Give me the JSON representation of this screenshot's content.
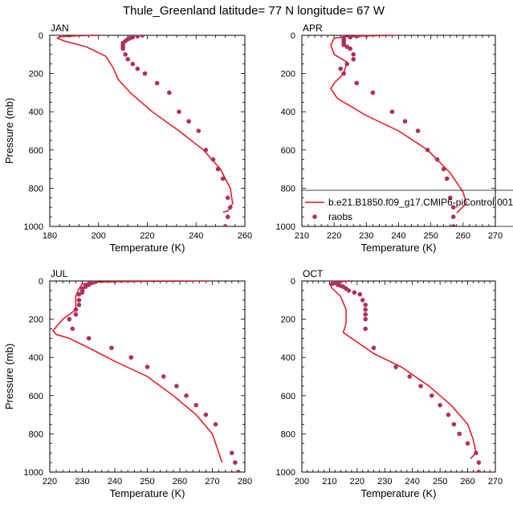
{
  "title": "Thule_Greenland  latitude= 77 N longitude= 67 W",
  "colors": {
    "model_line": "#e8131b",
    "raobs_marker": "#b03060",
    "axis": "#000000"
  },
  "legend": {
    "model_label": "b.e21.B1850.f09_g17.CMIP6-piControl.001",
    "obs_label": "raobs"
  },
  "chart_data": [
    {
      "type": "line",
      "panel": "JAN",
      "xlabel": "Temperature (K)",
      "ylabel": "Pressure (mb)",
      "xlim": [
        180,
        260
      ],
      "ylim": [
        1000,
        0
      ],
      "xticks": [
        180,
        200,
        220,
        240,
        260
      ],
      "yticks": [
        0,
        200,
        400,
        600,
        800,
        1000
      ],
      "series": [
        {
          "name": "b.e21.B1850.f09_g17.CMIP6-piControl.001",
          "style": "line",
          "x": [
            201,
            192,
            184,
            183,
            186,
            195,
            203,
            206,
            208,
            213,
            222,
            233,
            243,
            250,
            254,
            255,
            253,
            251
          ],
          "y": [
            0,
            2,
            8,
            15,
            30,
            60,
            110,
            170,
            230,
            300,
            400,
            500,
            600,
            700,
            800,
            880,
            920,
            925
          ]
        },
        {
          "name": "raobs",
          "style": "markers",
          "x": [
            218,
            216,
            214,
            213,
            212,
            211,
            210,
            210,
            210,
            210,
            211,
            212,
            214,
            216,
            219,
            224,
            229,
            233,
            237,
            241,
            244,
            247,
            249,
            251,
            253,
            254,
            253,
            252
          ],
          "y": [
            0,
            5,
            10,
            15,
            20,
            30,
            40,
            50,
            60,
            70,
            100,
            125,
            150,
            175,
            200,
            250,
            300,
            400,
            450,
            500,
            600,
            650,
            700,
            750,
            850,
            900,
            950,
            1000
          ]
        }
      ]
    },
    {
      "type": "line",
      "panel": "APR",
      "xlabel": "Temperature (K)",
      "ylabel": "",
      "xlim": [
        210,
        270
      ],
      "ylim": [
        1000,
        0
      ],
      "xticks": [
        210,
        220,
        230,
        240,
        250,
        260,
        270
      ],
      "yticks": [
        0,
        200,
        400,
        600,
        800,
        1000
      ],
      "series": [
        {
          "name": "b.e21.B1850.f09_g17.CMIP6-piControl.001",
          "style": "line",
          "x": [
            240,
            232,
            224,
            220,
            219,
            220,
            224,
            223,
            220,
            219,
            221,
            230,
            240,
            249,
            256,
            260,
            261,
            258
          ],
          "y": [
            0,
            2,
            5,
            15,
            50,
            100,
            140,
            200,
            250,
            280,
            330,
            420,
            500,
            600,
            720,
            820,
            880,
            930
          ]
        },
        {
          "name": "raobs",
          "style": "markers",
          "x": [
            230,
            227,
            225,
            223,
            223,
            223,
            223,
            223,
            224,
            225,
            226,
            226,
            224,
            222,
            223,
            227,
            232,
            238,
            242,
            246,
            249,
            252,
            254,
            255,
            256,
            257,
            257,
            257
          ],
          "y": [
            0,
            5,
            10,
            15,
            20,
            30,
            40,
            50,
            60,
            70,
            100,
            125,
            150,
            175,
            200,
            250,
            300,
            400,
            450,
            500,
            600,
            650,
            700,
            750,
            850,
            900,
            950,
            1000
          ]
        }
      ]
    },
    {
      "type": "line",
      "panel": "JUL",
      "xlabel": "Temperature (K)",
      "ylabel": "Pressure (mb)",
      "xlim": [
        220,
        280
      ],
      "ylim": [
        1000,
        0
      ],
      "xticks": [
        220,
        230,
        240,
        250,
        260,
        270,
        280
      ],
      "yticks": [
        0,
        200,
        400,
        600,
        800,
        1000
      ],
      "series": [
        {
          "name": "b.e21.B1850.f09_g17.CMIP6-piControl.001",
          "style": "line",
          "x": [
            270,
            250,
            235,
            230,
            229,
            228,
            228,
            224,
            221,
            222,
            226,
            232,
            240,
            250,
            258,
            265,
            270,
            272,
            273
          ],
          "y": [
            0,
            2,
            5,
            15,
            40,
            80,
            150,
            200,
            260,
            280,
            300,
            350,
            420,
            500,
            600,
            700,
            800,
            900,
            950
          ]
        },
        {
          "name": "raobs",
          "style": "markers",
          "x": [
            240,
            234,
            233,
            232,
            232,
            231,
            231,
            230,
            230,
            230,
            229,
            229,
            229,
            228,
            228,
            226,
            227,
            232,
            239,
            245,
            250,
            255,
            259,
            262,
            265,
            268,
            271,
            276,
            277,
            278
          ],
          "y": [
            0,
            5,
            10,
            15,
            20,
            25,
            30,
            40,
            50,
            60,
            70,
            100,
            125,
            150,
            175,
            200,
            250,
            300,
            350,
            400,
            450,
            500,
            550,
            600,
            650,
            700,
            750,
            900,
            950,
            1000
          ]
        }
      ]
    },
    {
      "type": "line",
      "panel": "OCT",
      "xlabel": "Temperature (K)",
      "ylabel": "",
      "xlim": [
        200,
        270
      ],
      "ylim": [
        1000,
        0
      ],
      "xticks": [
        200,
        210,
        220,
        230,
        240,
        250,
        260,
        270
      ],
      "yticks": [
        0,
        200,
        400,
        600,
        800,
        1000
      ],
      "series": [
        {
          "name": "b.e21.B1850.f09_g17.CMIP6-piControl.001",
          "style": "line",
          "x": [
            218,
            212,
            210,
            211,
            214,
            216,
            216,
            215,
            218,
            226,
            236,
            246,
            254,
            260,
            262,
            263,
            261
          ],
          "y": [
            0,
            5,
            15,
            40,
            80,
            150,
            220,
            270,
            300,
            380,
            450,
            550,
            650,
            750,
            830,
            900,
            930
          ]
        },
        {
          "name": "raobs",
          "style": "markers",
          "x": [
            214,
            213,
            212,
            211,
            213,
            214,
            215,
            216,
            217,
            219,
            221,
            222,
            223,
            223,
            223,
            223,
            223,
            226,
            234,
            239,
            243,
            247,
            250,
            253,
            255,
            257,
            260,
            263,
            264,
            264
          ],
          "y": [
            0,
            5,
            10,
            15,
            20,
            25,
            30,
            40,
            50,
            60,
            70,
            100,
            125,
            150,
            175,
            200,
            250,
            350,
            450,
            500,
            550,
            600,
            650,
            700,
            750,
            800,
            850,
            900,
            950,
            1000
          ]
        }
      ]
    }
  ]
}
